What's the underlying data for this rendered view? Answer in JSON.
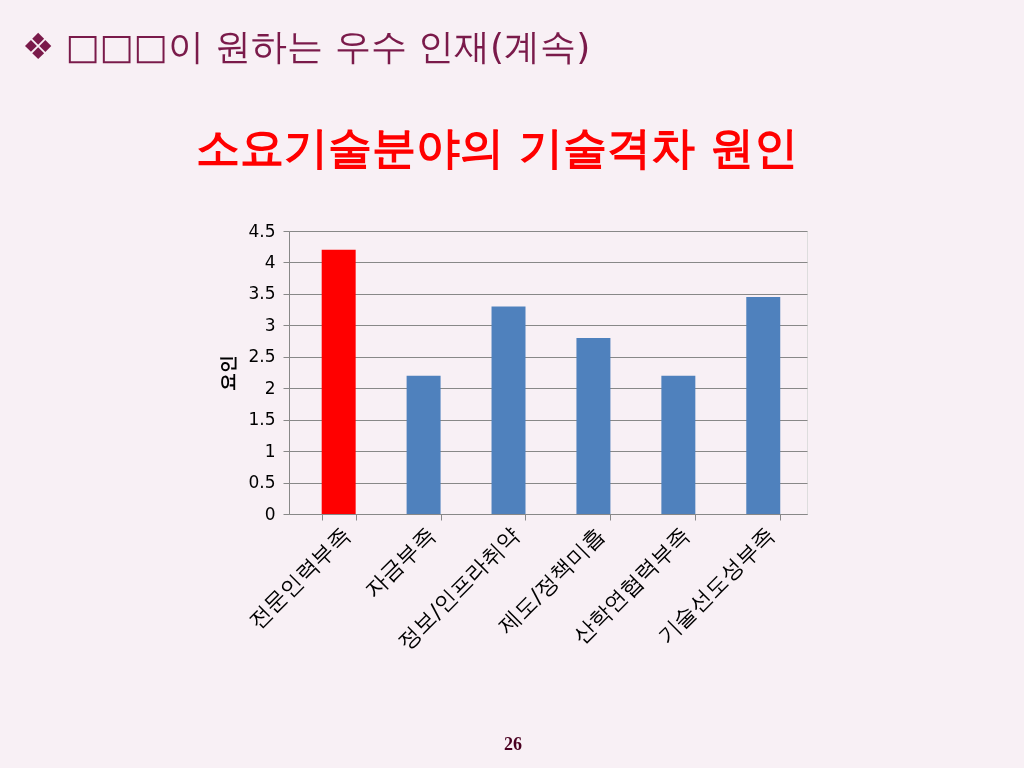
{
  "chart_data": {
    "type": "bar",
    "title": "소요기술분야의 기술격차 원인",
    "ylabel": "요인",
    "categories": [
      "전문인력부족",
      "자금부족",
      "정보/인프라취약",
      "제도/정책미흡",
      "산학연협력부족",
      "기술선도성부족"
    ],
    "values": [
      4.2,
      2.2,
      3.3,
      2.8,
      2.2,
      3.45
    ],
    "colors": [
      "#ff0000",
      "#4f81bd",
      "#4f81bd",
      "#4f81bd",
      "#4f81bd",
      "#4f81bd"
    ],
    "ylim": [
      0,
      4.5
    ],
    "yticks": [
      0,
      0.5,
      1,
      1.5,
      2,
      2.5,
      3,
      3.5,
      4,
      4.5
    ],
    "grid": "y",
    "annotations": [
      "❖ □□□이 원하는 우수 인재(계속)",
      "26"
    ]
  }
}
